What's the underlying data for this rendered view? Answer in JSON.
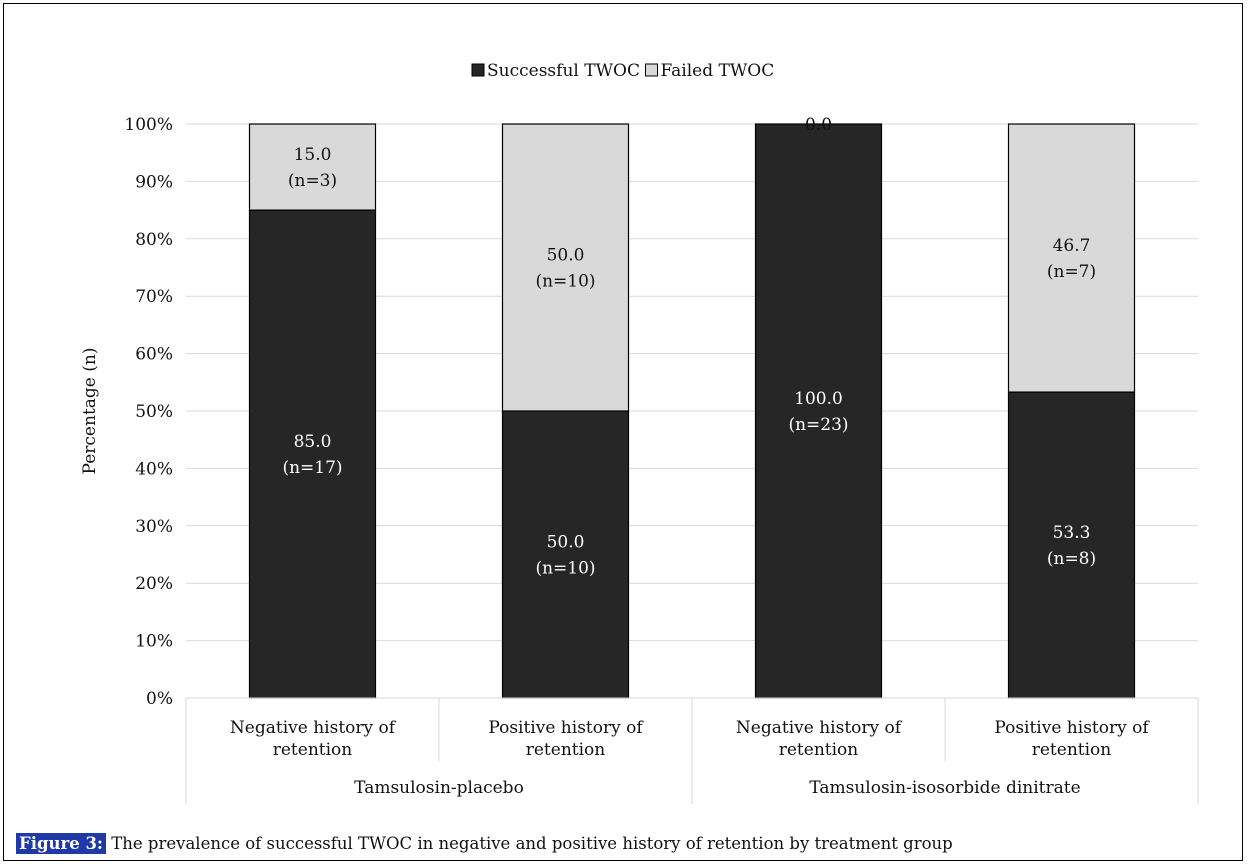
{
  "chart_data": {
    "type": "bar",
    "stacked": true,
    "normalized": true,
    "groups": [
      {
        "label": "Tamsulosin-placebo",
        "categories": [
          "Negative history of retention",
          "Positive history of retention"
        ]
      },
      {
        "label": "Tamsulosin-isosorbide dinitrate",
        "categories": [
          "Negative history of retention",
          "Positive history of retention"
        ]
      }
    ],
    "categories": [
      "Negative history of retention",
      "Positive history of retention",
      "Negative history of retention",
      "Positive history of retention"
    ],
    "category_lines": [
      [
        "Negative history of",
        "retention"
      ],
      [
        "Positive history of",
        "retention"
      ],
      [
        "Negative history of",
        "retention"
      ],
      [
        "Positive history of",
        "retention"
      ]
    ],
    "series": [
      {
        "name": "Successful TWOC",
        "color": "#262626",
        "values": [
          85.0,
          50.0,
          100.0,
          53.3
        ],
        "labels": [
          [
            "85.0",
            "(n=17)"
          ],
          [
            "50.0",
            "(n=10)"
          ],
          [
            "100.0",
            "(n=23)"
          ],
          [
            "53.3",
            "(n=8)"
          ]
        ]
      },
      {
        "name": "Failed TWOC",
        "color": "#d9d9d9",
        "values": [
          15.0,
          50.0,
          0.0,
          46.7
        ],
        "labels": [
          [
            "15.0",
            "(n=3)"
          ],
          [
            "50.0",
            "(n=10)"
          ],
          [
            "0.0"
          ],
          [
            "46.7",
            "(n=7)"
          ]
        ]
      }
    ],
    "ylabel": "Percentage (n)",
    "xlabel": "",
    "ylim": [
      0,
      100
    ],
    "yticks": [
      "0%",
      "10%",
      "20%",
      "30%",
      "40%",
      "50%",
      "60%",
      "70%",
      "80%",
      "90%",
      "100%"
    ],
    "legend_position": "top",
    "grid": true
  },
  "caption": {
    "label": "Figure 3:",
    "text": " The prevalence of successful TWOC in negative and positive history of retention by treatment group"
  }
}
